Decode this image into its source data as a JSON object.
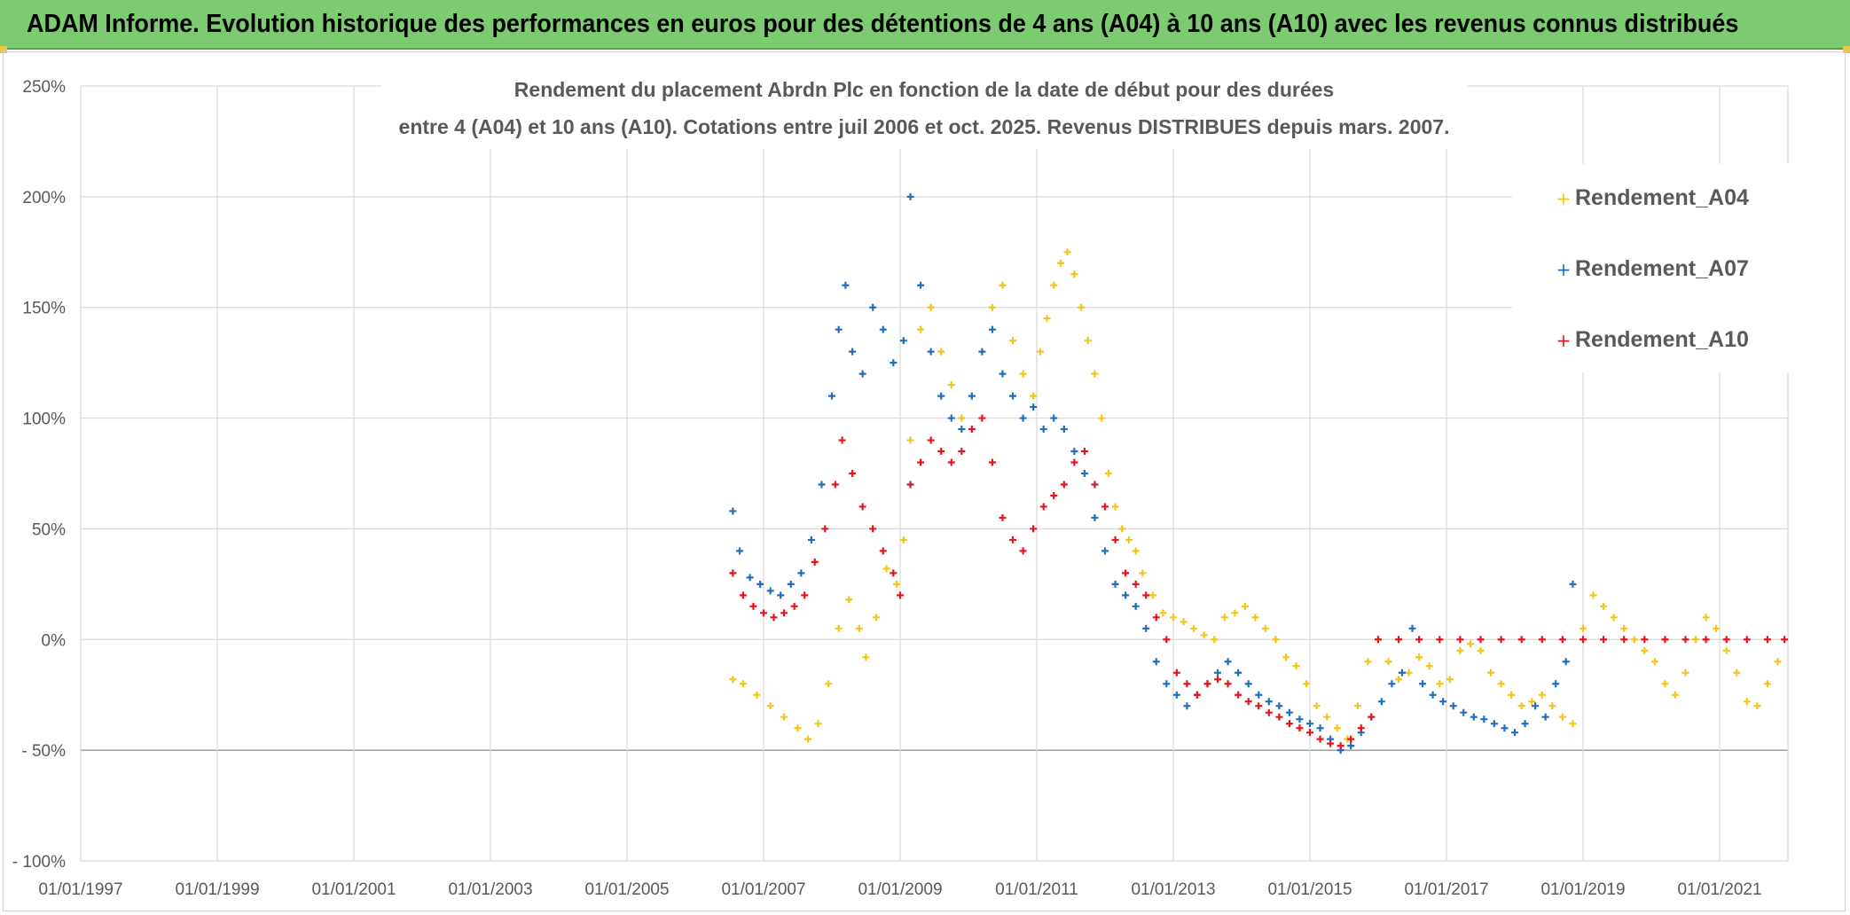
{
  "header": {
    "title": "ADAM Informe. Evolution historique des performances en euros pour des détentions de 4 ans (A04) à 10 ans (A10) avec les revenus connus distribués"
  },
  "colors": {
    "banner": "#7ccb70",
    "A04": "#f5c518",
    "A07": "#1f6fbf",
    "A10": "#e8141b",
    "grid": "#d9d9d9"
  },
  "chart_data": {
    "type": "scatter",
    "title_line1": "Rendement du placement Abrdn Plc en fonction de la date de début pour des durées",
    "title_line2": "entre 4 (A04) et 10 ans (A10). Cotations entre juil 2006 et oct. 2025. Revenus DISTRIBUES depuis mars. 2007.",
    "xlabel": "",
    "ylabel": "",
    "xlim": [
      1997.0,
      2022.0
    ],
    "ylim": [
      -100,
      250
    ],
    "x_ticks": [
      1997,
      1999,
      2001,
      2003,
      2005,
      2007,
      2009,
      2011,
      2013,
      2015,
      2017,
      2019,
      2021
    ],
    "x_tick_labels": [
      "01/01/1997",
      "01/01/1999",
      "01/01/2001",
      "01/01/2003",
      "01/01/2005",
      "01/01/2007",
      "01/01/2009",
      "01/01/2011",
      "01/01/2013",
      "01/01/2015",
      "01/01/2017",
      "01/01/2019",
      "01/01/2021"
    ],
    "y_ticks": [
      -100,
      -50,
      0,
      50,
      100,
      150,
      200,
      250
    ],
    "y_tick_labels": [
      "- 100%",
      "- 50%",
      "0%",
      "50%",
      "100%",
      "150%",
      "200%",
      "250%"
    ],
    "grid": true,
    "legend_position": "right",
    "marker": "+",
    "series": [
      {
        "name": "Rendement_A04",
        "color": "#f5c518",
        "x": [
          2006.55,
          2006.7,
          2006.9,
          2007.1,
          2007.3,
          2007.5,
          2007.65,
          2007.8,
          2007.95,
          2008.1,
          2008.25,
          2008.4,
          2008.5,
          2008.65,
          2008.8,
          2008.95,
          2009.05,
          2009.15,
          2009.3,
          2009.45,
          2009.6,
          2009.75,
          2009.9,
          2010.05,
          2010.2,
          2010.35,
          2010.5,
          2010.65,
          2010.8,
          2010.95,
          2011.05,
          2011.15,
          2011.25,
          2011.35,
          2011.45,
          2011.55,
          2011.65,
          2011.75,
          2011.85,
          2011.95,
          2012.05,
          2012.15,
          2012.25,
          2012.35,
          2012.45,
          2012.55,
          2012.7,
          2012.85,
          2013.0,
          2013.15,
          2013.3,
          2013.45,
          2013.6,
          2013.75,
          2013.9,
          2014.05,
          2014.2,
          2014.35,
          2014.5,
          2014.65,
          2014.8,
          2014.95,
          2015.1,
          2015.25,
          2015.4,
          2015.55,
          2015.7,
          2015.85,
          2016.0,
          2016.15,
          2016.3,
          2016.45,
          2016.6,
          2016.75,
          2016.9,
          2017.05,
          2017.2,
          2017.35,
          2017.5,
          2017.65,
          2017.8,
          2017.95,
          2018.1,
          2018.25,
          2018.4,
          2018.55,
          2018.7,
          2018.85,
          2019.0,
          2019.15,
          2019.3,
          2019.45,
          2019.6,
          2019.75,
          2019.9,
          2020.05,
          2020.2,
          2020.35,
          2020.5,
          2020.65,
          2020.8,
          2020.95,
          2021.1,
          2021.25,
          2021.4,
          2021.55,
          2021.7,
          2021.85
        ],
        "y": [
          -18,
          -20,
          -25,
          -30,
          -35,
          -40,
          -45,
          -38,
          -20,
          5,
          18,
          5,
          -8,
          10,
          32,
          25,
          45,
          90,
          140,
          150,
          130,
          115,
          100,
          110,
          130,
          150,
          160,
          135,
          120,
          110,
          130,
          145,
          160,
          170,
          175,
          165,
          150,
          135,
          120,
          100,
          75,
          60,
          50,
          45,
          40,
          30,
          20,
          12,
          10,
          8,
          5,
          2,
          0,
          10,
          12,
          15,
          10,
          5,
          0,
          -8,
          -12,
          -20,
          -30,
          -35,
          -40,
          -45,
          -30,
          -10,
          0,
          -10,
          -18,
          -15,
          -8,
          -12,
          -20,
          -18,
          -5,
          -2,
          -5,
          -15,
          -20,
          -25,
          -30,
          -28,
          -25,
          -30,
          -35,
          -38,
          5,
          20,
          15,
          10,
          5,
          0,
          -5,
          -10,
          -20,
          -25,
          -15,
          0,
          10,
          5,
          -5,
          -15,
          -28,
          -30,
          -20,
          -10
        ]
      },
      {
        "name": "Rendement_A07",
        "color": "#1f6fbf",
        "x": [
          2006.55,
          2006.65,
          2006.8,
          2006.95,
          2007.1,
          2007.25,
          2007.4,
          2007.55,
          2007.7,
          2007.85,
          2008.0,
          2008.1,
          2008.2,
          2008.3,
          2008.45,
          2008.6,
          2008.75,
          2008.9,
          2009.05,
          2009.15,
          2009.3,
          2009.45,
          2009.6,
          2009.75,
          2009.9,
          2010.05,
          2010.2,
          2010.35,
          2010.5,
          2010.65,
          2010.8,
          2010.95,
          2011.1,
          2011.25,
          2011.4,
          2011.55,
          2011.7,
          2011.85,
          2012.0,
          2012.15,
          2012.3,
          2012.45,
          2012.6,
          2012.75,
          2012.9,
          2013.05,
          2013.2,
          2013.35,
          2013.5,
          2013.65,
          2013.8,
          2013.95,
          2014.1,
          2014.25,
          2014.4,
          2014.55,
          2014.7,
          2014.85,
          2015.0,
          2015.15,
          2015.3,
          2015.45,
          2015.6,
          2015.75,
          2015.9,
          2016.05,
          2016.2,
          2016.35,
          2016.5,
          2016.65,
          2016.8,
          2016.95,
          2017.1,
          2017.25,
          2017.4,
          2017.55,
          2017.7,
          2017.85,
          2018.0,
          2018.15,
          2018.3,
          2018.45,
          2018.6,
          2018.75,
          2018.85
        ],
        "y": [
          58,
          40,
          28,
          25,
          22,
          20,
          25,
          30,
          45,
          70,
          110,
          140,
          160,
          130,
          120,
          150,
          140,
          125,
          135,
          200,
          160,
          130,
          110,
          100,
          95,
          110,
          130,
          140,
          120,
          110,
          100,
          105,
          95,
          100,
          95,
          85,
          75,
          55,
          40,
          25,
          20,
          15,
          5,
          -10,
          -20,
          -25,
          -30,
          -25,
          -20,
          -15,
          -10,
          -15,
          -20,
          -25,
          -28,
          -30,
          -33,
          -36,
          -38,
          -40,
          -45,
          -50,
          -48,
          -42,
          -35,
          -28,
          -20,
          -15,
          5,
          -20,
          -25,
          -28,
          -30,
          -33,
          -35,
          -36,
          -38,
          -40,
          -42,
          -38,
          -30,
          -35,
          -20,
          -10,
          25
        ]
      },
      {
        "name": "Rendement_A10",
        "color": "#e8141b",
        "x": [
          2006.55,
          2006.7,
          2006.85,
          2007.0,
          2007.15,
          2007.3,
          2007.45,
          2007.6,
          2007.75,
          2007.9,
          2008.05,
          2008.15,
          2008.3,
          2008.45,
          2008.6,
          2008.75,
          2008.9,
          2009.0,
          2009.15,
          2009.3,
          2009.45,
          2009.6,
          2009.75,
          2009.9,
          2010.05,
          2010.2,
          2010.35,
          2010.5,
          2010.65,
          2010.8,
          2010.95,
          2011.1,
          2011.25,
          2011.4,
          2011.55,
          2011.7,
          2011.85,
          2012.0,
          2012.15,
          2012.3,
          2012.45,
          2012.6,
          2012.75,
          2012.9,
          2013.05,
          2013.2,
          2013.35,
          2013.5,
          2013.65,
          2013.8,
          2013.95,
          2014.1,
          2014.25,
          2014.4,
          2014.55,
          2014.7,
          2014.85,
          2015.0,
          2015.15,
          2015.3,
          2015.45,
          2015.6,
          2015.75,
          2015.9,
          2016.0,
          2016.3,
          2016.6,
          2016.9,
          2017.2,
          2017.5,
          2017.8,
          2018.1,
          2018.4,
          2018.7,
          2019.0,
          2019.3,
          2019.6,
          2019.9,
          2020.2,
          2020.5,
          2020.8,
          2021.1,
          2021.4,
          2021.7,
          2021.95
        ],
        "y": [
          30,
          20,
          15,
          12,
          10,
          12,
          15,
          20,
          35,
          50,
          70,
          90,
          75,
          60,
          50,
          40,
          30,
          20,
          70,
          80,
          90,
          85,
          80,
          85,
          95,
          100,
          80,
          55,
          45,
          40,
          50,
          60,
          65,
          70,
          80,
          85,
          70,
          60,
          45,
          30,
          25,
          20,
          10,
          0,
          -15,
          -20,
          -25,
          -20,
          -18,
          -20,
          -25,
          -28,
          -30,
          -33,
          -35,
          -38,
          -40,
          -42,
          -45,
          -47,
          -48,
          -45,
          -40,
          -35,
          0,
          0,
          0,
          0,
          0,
          0,
          0,
          0,
          0,
          0,
          0,
          0,
          0,
          0,
          0,
          0,
          0,
          0,
          0,
          0,
          0
        ]
      }
    ]
  }
}
